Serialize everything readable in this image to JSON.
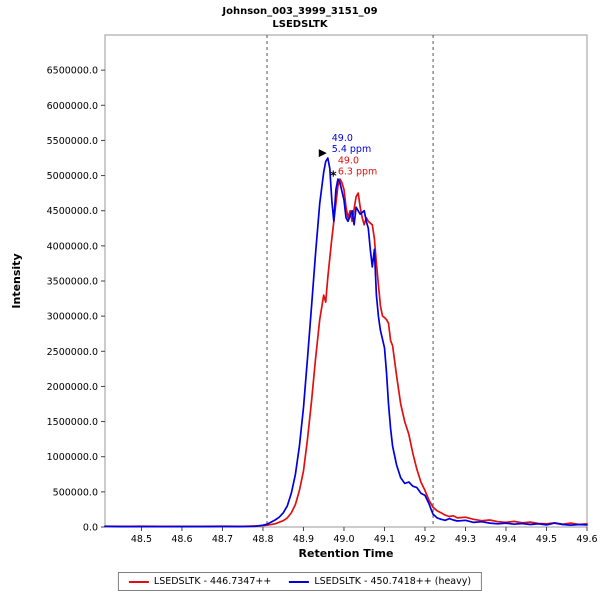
{
  "chart_data": {
    "type": "line",
    "title": "Johnson_003_3999_3151_09",
    "subtitle": "LSEDSLTK",
    "xlabel": "Retention Time",
    "ylabel": "Intensity",
    "xlim": [
      48.41,
      49.6
    ],
    "ylim": [
      0,
      7000000
    ],
    "x_ticks": [
      48.5,
      48.6,
      48.7,
      48.8,
      48.9,
      49.0,
      49.1,
      49.2,
      49.3,
      49.4,
      49.5,
      49.6
    ],
    "y_ticks": [
      0,
      500000,
      1000000,
      1500000,
      2000000,
      2500000,
      3000000,
      3500000,
      4000000,
      4500000,
      5000000,
      5500000,
      6000000,
      6500000
    ],
    "grid": false,
    "peak_boundaries": [
      48.81,
      49.22
    ],
    "series": [
      {
        "name": "LSEDSLTK - 446.7347++",
        "color": "#e01010",
        "points": [
          [
            48.41,
            12000
          ],
          [
            48.45,
            9000
          ],
          [
            48.5,
            11000
          ],
          [
            48.55,
            8000
          ],
          [
            48.6,
            10000
          ],
          [
            48.65,
            9000
          ],
          [
            48.7,
            12000
          ],
          [
            48.75,
            10000
          ],
          [
            48.79,
            15000
          ],
          [
            48.81,
            25000
          ],
          [
            48.83,
            45000
          ],
          [
            48.85,
            90000
          ],
          [
            48.86,
            130000
          ],
          [
            48.87,
            200000
          ],
          [
            48.88,
            320000
          ],
          [
            48.89,
            520000
          ],
          [
            48.9,
            800000
          ],
          [
            48.91,
            1250000
          ],
          [
            48.92,
            1800000
          ],
          [
            48.93,
            2400000
          ],
          [
            48.94,
            2950000
          ],
          [
            48.95,
            3300000
          ],
          [
            48.955,
            3200000
          ],
          [
            48.96,
            3550000
          ],
          [
            48.97,
            4100000
          ],
          [
            48.98,
            4600000
          ],
          [
            48.985,
            4850000
          ],
          [
            48.99,
            4950000
          ],
          [
            48.995,
            4900000
          ],
          [
            49.0,
            4800000
          ],
          [
            49.005,
            4550000
          ],
          [
            49.01,
            4400000
          ],
          [
            49.015,
            4500000
          ],
          [
            49.02,
            4350000
          ],
          [
            49.03,
            4700000
          ],
          [
            49.035,
            4750000
          ],
          [
            49.04,
            4550000
          ],
          [
            49.045,
            4400000
          ],
          [
            49.05,
            4300000
          ],
          [
            49.055,
            4400000
          ],
          [
            49.06,
            4350000
          ],
          [
            49.07,
            4300000
          ],
          [
            49.075,
            4100000
          ],
          [
            49.08,
            3750000
          ],
          [
            49.09,
            3150000
          ],
          [
            49.095,
            3000000
          ],
          [
            49.1,
            2980000
          ],
          [
            49.105,
            2950000
          ],
          [
            49.11,
            2900000
          ],
          [
            49.115,
            2650000
          ],
          [
            49.12,
            2580000
          ],
          [
            49.13,
            2150000
          ],
          [
            49.14,
            1750000
          ],
          [
            49.15,
            1500000
          ],
          [
            49.16,
            1320000
          ],
          [
            49.17,
            1050000
          ],
          [
            49.18,
            820000
          ],
          [
            49.19,
            640000
          ],
          [
            49.2,
            520000
          ],
          [
            49.21,
            380000
          ],
          [
            49.22,
            280000
          ],
          [
            49.23,
            230000
          ],
          [
            49.24,
            200000
          ],
          [
            49.25,
            170000
          ],
          [
            49.26,
            150000
          ],
          [
            49.27,
            160000
          ],
          [
            49.28,
            130000
          ],
          [
            49.3,
            140000
          ],
          [
            49.32,
            110000
          ],
          [
            49.34,
            90000
          ],
          [
            49.36,
            100000
          ],
          [
            49.38,
            75000
          ],
          [
            49.4,
            65000
          ],
          [
            49.42,
            80000
          ],
          [
            49.44,
            60000
          ],
          [
            49.46,
            70000
          ],
          [
            49.48,
            50000
          ],
          [
            49.5,
            45000
          ],
          [
            49.52,
            60000
          ],
          [
            49.54,
            40000
          ],
          [
            49.56,
            55000
          ],
          [
            49.58,
            35000
          ],
          [
            49.6,
            45000
          ]
        ]
      },
      {
        "name": "LSEDSLTK - 450.7418++ (heavy)",
        "color": "#0000e0",
        "points": [
          [
            48.41,
            8000
          ],
          [
            48.45,
            5000
          ],
          [
            48.5,
            6000
          ],
          [
            48.55,
            4000
          ],
          [
            48.6,
            6000
          ],
          [
            48.65,
            5000
          ],
          [
            48.7,
            7000
          ],
          [
            48.74,
            6000
          ],
          [
            48.78,
            10000
          ],
          [
            48.8,
            25000
          ],
          [
            48.81,
            40000
          ],
          [
            48.82,
            70000
          ],
          [
            48.83,
            100000
          ],
          [
            48.84,
            140000
          ],
          [
            48.85,
            200000
          ],
          [
            48.86,
            300000
          ],
          [
            48.87,
            480000
          ],
          [
            48.88,
            750000
          ],
          [
            48.89,
            1150000
          ],
          [
            48.9,
            1700000
          ],
          [
            48.91,
            2400000
          ],
          [
            48.92,
            3150000
          ],
          [
            48.93,
            3900000
          ],
          [
            48.94,
            4600000
          ],
          [
            48.95,
            5050000
          ],
          [
            48.955,
            5200000
          ],
          [
            48.96,
            5250000
          ],
          [
            48.965,
            5100000
          ],
          [
            48.97,
            4650000
          ],
          [
            48.975,
            4350000
          ],
          [
            48.98,
            4800000
          ],
          [
            48.985,
            4950000
          ],
          [
            48.99,
            4900000
          ],
          [
            49.0,
            4650000
          ],
          [
            49.005,
            4400000
          ],
          [
            49.01,
            4350000
          ],
          [
            49.02,
            4500000
          ],
          [
            49.025,
            4300000
          ],
          [
            49.03,
            4550000
          ],
          [
            49.04,
            4450000
          ],
          [
            49.05,
            4500000
          ],
          [
            49.055,
            4350000
          ],
          [
            49.06,
            4250000
          ],
          [
            49.065,
            3950000
          ],
          [
            49.07,
            3700000
          ],
          [
            49.075,
            3950000
          ],
          [
            49.08,
            3300000
          ],
          [
            49.085,
            3000000
          ],
          [
            49.09,
            2800000
          ],
          [
            49.1,
            2550000
          ],
          [
            49.105,
            2200000
          ],
          [
            49.11,
            1750000
          ],
          [
            49.115,
            1400000
          ],
          [
            49.12,
            1150000
          ],
          [
            49.13,
            880000
          ],
          [
            49.14,
            700000
          ],
          [
            49.15,
            620000
          ],
          [
            49.16,
            640000
          ],
          [
            49.17,
            580000
          ],
          [
            49.18,
            560000
          ],
          [
            49.19,
            480000
          ],
          [
            49.2,
            450000
          ],
          [
            49.21,
            330000
          ],
          [
            49.215,
            250000
          ],
          [
            49.22,
            180000
          ],
          [
            49.23,
            130000
          ],
          [
            49.24,
            110000
          ],
          [
            49.25,
            95000
          ],
          [
            49.26,
            120000
          ],
          [
            49.27,
            100000
          ],
          [
            49.28,
            85000
          ],
          [
            49.3,
            95000
          ],
          [
            49.32,
            65000
          ],
          [
            49.34,
            75000
          ],
          [
            49.36,
            55000
          ],
          [
            49.38,
            45000
          ],
          [
            49.4,
            55000
          ],
          [
            49.42,
            40000
          ],
          [
            49.44,
            50000
          ],
          [
            49.46,
            35000
          ],
          [
            49.48,
            45000
          ],
          [
            49.5,
            30000
          ],
          [
            49.52,
            55000
          ],
          [
            49.54,
            35000
          ],
          [
            49.56,
            25000
          ],
          [
            49.58,
            35000
          ],
          [
            49.6,
            30000
          ]
        ]
      }
    ],
    "annotations": [
      {
        "series": "heavy",
        "color": "#0000e0",
        "rt_label": "49.0",
        "ppm_label": "5.4 ppm",
        "anchor_rt": 48.96,
        "anchor_intensity": 5320000,
        "marker": "arrow"
      },
      {
        "series": "light",
        "color": "#e01010",
        "rt_label": "49.0",
        "ppm_label": "6.3 ppm",
        "anchor_rt": 48.975,
        "anchor_intensity": 5000000,
        "marker": "asterisk"
      }
    ]
  },
  "legend": {
    "items": [
      {
        "label": "LSEDSLTK - 446.7347++",
        "color": "#e01010"
      },
      {
        "label": "LSEDSLTK - 450.7418++ (heavy)",
        "color": "#0000e0"
      }
    ]
  },
  "colors": {
    "plot_border": "#9a9a9a",
    "boundary_line": "#555555",
    "tick": "#444444"
  }
}
